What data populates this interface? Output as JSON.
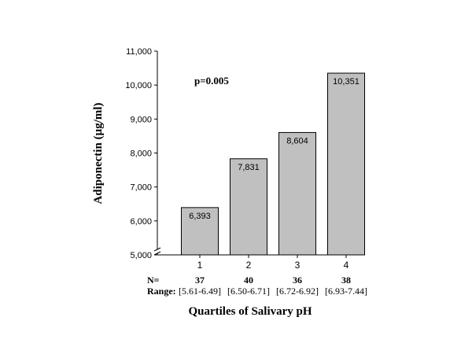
{
  "chart_data": {
    "type": "bar",
    "categories": [
      "1",
      "2",
      "3",
      "4"
    ],
    "values": [
      6393,
      7831,
      8604,
      10351
    ],
    "value_labels": [
      "6,393",
      "7,831",
      "8,604",
      "10,351"
    ],
    "ylabel": "Adiponectin (µg/ml)",
    "xlabel": "Quartiles of Salivary pH",
    "ylim": [
      5000,
      11000
    ],
    "yticks": [
      5000,
      6000,
      7000,
      8000,
      9000,
      10000,
      11000
    ],
    "ytick_labels": [
      "5,000",
      "6,000",
      "7,000",
      "8,000",
      "9,000",
      "10,000",
      "11,000"
    ],
    "axis_break": true,
    "grid": false,
    "annotation": "p=0.005",
    "n_label": "N=",
    "n_values": [
      "37",
      "40",
      "36",
      "38"
    ],
    "range_label": "Range:",
    "ranges": [
      "[5.61-6.49]",
      "[6.50-6.71]",
      "[6.72-6.92]",
      "[6.93-7.44]"
    ],
    "bar_color": "#c0c0c0",
    "bar_edge_color": "#000000"
  }
}
